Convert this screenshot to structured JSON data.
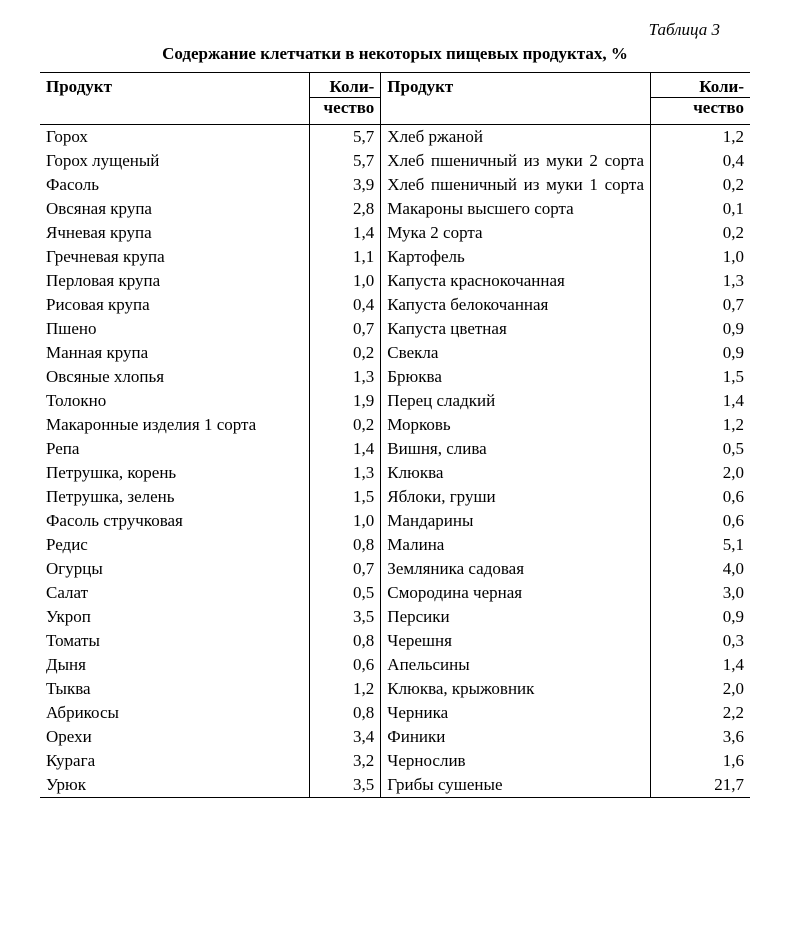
{
  "table_number": "Таблица 3",
  "title": "Содержание клетчатки в некоторых пищевых продуктах, %",
  "columns": {
    "product": "Продукт",
    "qty_top": "Коли-",
    "qty_bottom": "чество"
  },
  "rows": [
    {
      "lp": "Горох",
      "lv": "5,7",
      "rp": "Хлеб ржаной",
      "rv": "1,2"
    },
    {
      "lp": "Горох лущеный",
      "lv": "5,7",
      "rp": "Хлеб пшеничный из муки 2 сорта",
      "rv": "0,4",
      "justify_r": true
    },
    {
      "lp": "Фасоль",
      "lv": "3,9",
      "rp": "Хлеб пшеничный из муки 1 сорта",
      "rv": "0,2",
      "justify_r": true
    },
    {
      "lp": "Овсяная крупа",
      "lv": "2,8",
      "rp": "Макароны высшего сорта",
      "rv": "0,1"
    },
    {
      "lp": "Ячневая крупа",
      "lv": "1,4",
      "rp": "Мука 2 сорта",
      "rv": "0,2"
    },
    {
      "lp": "Гречневая крупа",
      "lv": "1,1",
      "rp": "Картофель",
      "rv": "1,0"
    },
    {
      "lp": "Перловая крупа",
      "lv": "1,0",
      "rp": "Капуста краснокочанная",
      "rv": "1,3"
    },
    {
      "lp": "Рисовая крупа",
      "lv": "0,4",
      "rp": "Капуста белокочанная",
      "rv": "0,7"
    },
    {
      "lp": "Пшено",
      "lv": "0,7",
      "rp": "Капуста цветная",
      "rv": "0,9"
    },
    {
      "lp": "Манная крупа",
      "lv": "0,2",
      "rp": "Свекла",
      "rv": "0,9"
    },
    {
      "lp": "Овсяные хлопья",
      "lv": "1,3",
      "rp": "Брюква",
      "rv": "1,5"
    },
    {
      "lp": "Толокно",
      "lv": "1,9",
      "rp": "Перец сладкий",
      "rv": "1,4"
    },
    {
      "lp": "Макаронные изделия 1 сорта",
      "lv": "0,2",
      "rp": "Морковь",
      "rv": "1,2"
    },
    {
      "lp": "Репа",
      "lv": "1,4",
      "rp": "Вишня, слива",
      "rv": "0,5"
    },
    {
      "lp": "Петрушка, корень",
      "lv": "1,3",
      "rp": "Клюква",
      "rv": "2,0"
    },
    {
      "lp": "Петрушка, зелень",
      "lv": "1,5",
      "rp": "Яблоки, груши",
      "rv": "0,6"
    },
    {
      "lp": "Фасоль стручковая",
      "lv": "1,0",
      "rp": "Мандарины",
      "rv": "0,6"
    },
    {
      "lp": "Редис",
      "lv": "0,8",
      "rp": "Малина",
      "rv": "5,1"
    },
    {
      "lp": "Огурцы",
      "lv": "0,7",
      "rp": "Земляника садовая",
      "rv": "4,0"
    },
    {
      "lp": "Салат",
      "lv": "0,5",
      "rp": "Смородина черная",
      "rv": "3,0"
    },
    {
      "lp": "Укроп",
      "lv": "3,5",
      "rp": "Персики",
      "rv": "0,9"
    },
    {
      "lp": "Томаты",
      "lv": "0,8",
      "rp": "Черешня",
      "rv": "0,3"
    },
    {
      "lp": "Дыня",
      "lv": "0,6",
      "rp": "Апельсины",
      "rv": "1,4"
    },
    {
      "lp": "Тыква",
      "lv": "1,2",
      "rp": "Клюква, крыжовник",
      "rv": "2,0"
    },
    {
      "lp": "Абрикосы",
      "lv": "0,8",
      "rp": "Черника",
      "rv": "2,2"
    },
    {
      "lp": "Орехи",
      "lv": "3,4",
      "rp": "Финики",
      "rv": "3,6"
    },
    {
      "lp": "Курага",
      "lv": "3,2",
      "rp": "Чернослив",
      "rv": "1,6"
    },
    {
      "lp": "Урюк",
      "lv": "3,5",
      "rp": "Грибы сушеные",
      "rv": "21,7"
    }
  ]
}
